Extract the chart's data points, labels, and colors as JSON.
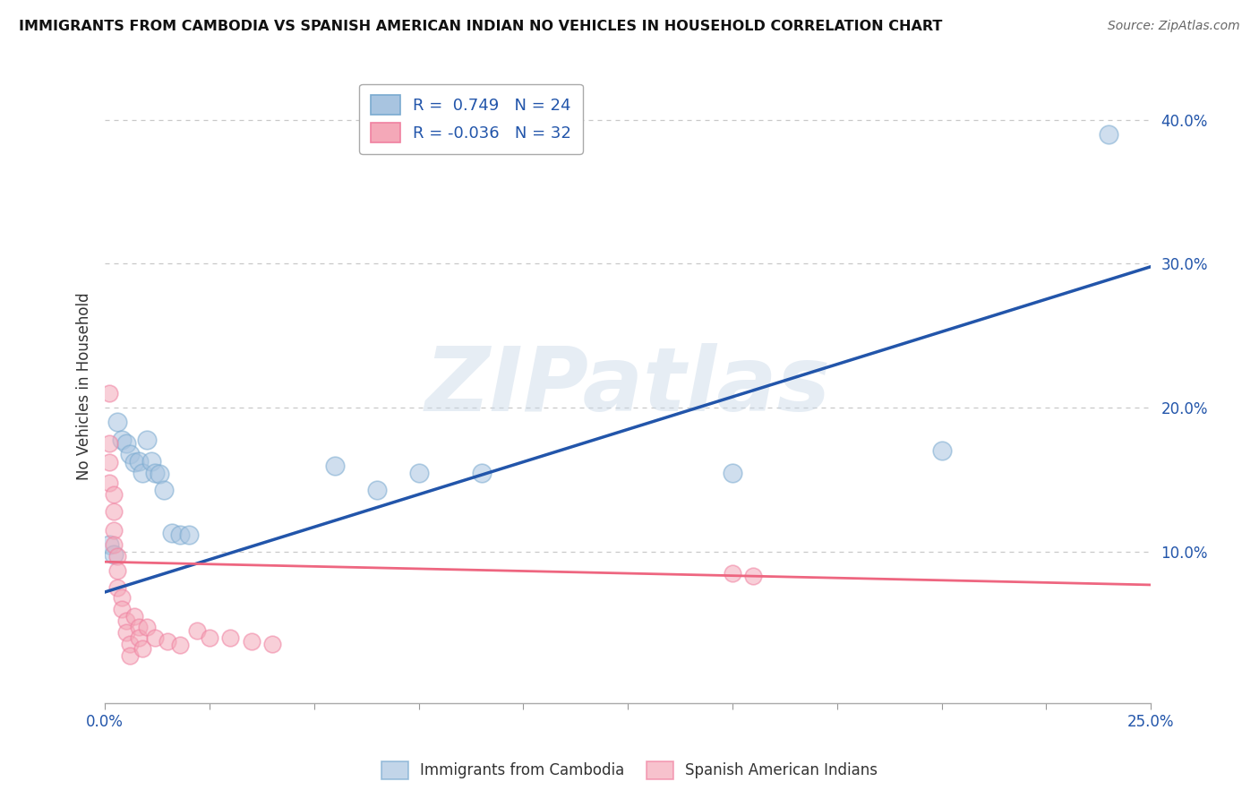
{
  "title": "IMMIGRANTS FROM CAMBODIA VS SPANISH AMERICAN INDIAN NO VEHICLES IN HOUSEHOLD CORRELATION CHART",
  "source": "Source: ZipAtlas.com",
  "ylabel": "No Vehicles in Household",
  "watermark": "ZIPatlas",
  "legend_blue_R": "0.749",
  "legend_blue_N": "24",
  "legend_pink_R": "-0.036",
  "legend_pink_N": "32",
  "xlim": [
    0.0,
    0.25
  ],
  "ylim": [
    -0.005,
    0.435
  ],
  "yticks": [
    0.1,
    0.2,
    0.3,
    0.4
  ],
  "xticks": [
    0.0,
    0.025,
    0.05,
    0.075,
    0.1,
    0.125,
    0.15,
    0.175,
    0.2,
    0.225,
    0.25
  ],
  "xtick_labels": [
    "0.0%",
    "",
    "",
    "",
    "",
    "",
    "",
    "",
    "",
    "",
    "25.0%"
  ],
  "blue_scatter": [
    [
      0.001,
      0.105
    ],
    [
      0.002,
      0.098
    ],
    [
      0.003,
      0.19
    ],
    [
      0.004,
      0.178
    ],
    [
      0.005,
      0.175
    ],
    [
      0.006,
      0.168
    ],
    [
      0.007,
      0.162
    ],
    [
      0.008,
      0.163
    ],
    [
      0.009,
      0.155
    ],
    [
      0.01,
      0.178
    ],
    [
      0.011,
      0.163
    ],
    [
      0.012,
      0.155
    ],
    [
      0.013,
      0.154
    ],
    [
      0.014,
      0.143
    ],
    [
      0.016,
      0.113
    ],
    [
      0.018,
      0.112
    ],
    [
      0.02,
      0.112
    ],
    [
      0.055,
      0.16
    ],
    [
      0.065,
      0.143
    ],
    [
      0.075,
      0.155
    ],
    [
      0.09,
      0.155
    ],
    [
      0.15,
      0.155
    ],
    [
      0.2,
      0.17
    ],
    [
      0.24,
      0.39
    ]
  ],
  "pink_scatter": [
    [
      0.001,
      0.21
    ],
    [
      0.001,
      0.175
    ],
    [
      0.001,
      0.162
    ],
    [
      0.001,
      0.148
    ],
    [
      0.002,
      0.14
    ],
    [
      0.002,
      0.128
    ],
    [
      0.002,
      0.115
    ],
    [
      0.002,
      0.105
    ],
    [
      0.003,
      0.097
    ],
    [
      0.003,
      0.087
    ],
    [
      0.003,
      0.075
    ],
    [
      0.004,
      0.068
    ],
    [
      0.004,
      0.06
    ],
    [
      0.005,
      0.052
    ],
    [
      0.005,
      0.044
    ],
    [
      0.006,
      0.036
    ],
    [
      0.006,
      0.028
    ],
    [
      0.007,
      0.055
    ],
    [
      0.008,
      0.048
    ],
    [
      0.008,
      0.04
    ],
    [
      0.009,
      0.033
    ],
    [
      0.01,
      0.048
    ],
    [
      0.012,
      0.04
    ],
    [
      0.015,
      0.038
    ],
    [
      0.018,
      0.035
    ],
    [
      0.022,
      0.045
    ],
    [
      0.025,
      0.04
    ],
    [
      0.03,
      0.04
    ],
    [
      0.035,
      0.038
    ],
    [
      0.04,
      0.036
    ],
    [
      0.15,
      0.085
    ],
    [
      0.155,
      0.083
    ]
  ],
  "blue_line_x": [
    0.0,
    0.25
  ],
  "blue_line_y": [
    0.072,
    0.298
  ],
  "pink_line_x": [
    0.0,
    0.25
  ],
  "pink_line_y": [
    0.093,
    0.077
  ],
  "blue_color": "#A8C4E0",
  "pink_color": "#F4A8B8",
  "blue_scatter_edge": "#7AAAD0",
  "pink_scatter_edge": "#F080A0",
  "blue_line_color": "#2255AA",
  "pink_line_color": "#EE6680",
  "legend_label_blue": "Immigrants from Cambodia",
  "legend_label_pink": "Spanish American Indians",
  "background_color": "#FFFFFF",
  "grid_color": "#C8C8C8"
}
